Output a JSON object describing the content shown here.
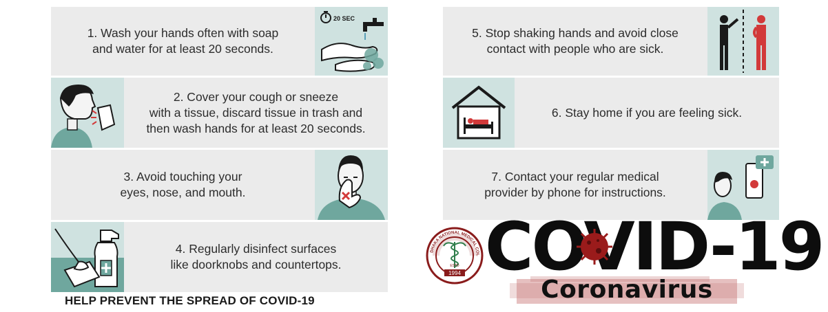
{
  "left_panel": {
    "steps": [
      {
        "lines": [
          "1. Wash your hands often with soap",
          "and water for at least 20 seconds."
        ],
        "icon": "handwashing-icon",
        "timer_label": "20 SEC"
      },
      {
        "lines": [
          "2. Cover your cough or sneeze",
          "with a tissue, discard tissue in trash and",
          "then wash hands for at least 20 seconds."
        ],
        "icon": "sneeze-tissue-icon"
      },
      {
        "lines": [
          "3. Avoid touching your",
          "eyes, nose, and mouth."
        ],
        "icon": "no-face-touch-icon"
      },
      {
        "lines": [
          "4. Regularly disinfect surfaces",
          "like doorknobs and countertops."
        ],
        "icon": "disinfect-spray-icon"
      }
    ],
    "footer_title": "HELP PREVENT THE SPREAD OF COVID-19"
  },
  "right_panel": {
    "steps": [
      {
        "lines": [
          "5. Stop shaking hands and avoid close",
          "contact with people who are sick."
        ],
        "icon": "social-distance-icon"
      },
      {
        "lines": [
          "6. Stay home if you are feeling sick."
        ],
        "icon": "stay-home-icon"
      },
      {
        "lines": [
          "7. Contact your regular medical",
          "provider by phone for instructions."
        ],
        "icon": "phone-doctor-icon"
      }
    ]
  },
  "logo": {
    "text": "DHAKA NATIONAL MEDICAL COLLEGE",
    "estd": "ESTD",
    "year": "1994"
  },
  "banner": {
    "title": "COVID-19",
    "subtitle": "Coronavirus"
  },
  "colors": {
    "teal": "#6fa79e",
    "teal_light": "#cfe2e0",
    "row_gray": "#ebebeb",
    "red": "#d23a3a",
    "maroon": "#8a1c1c"
  }
}
